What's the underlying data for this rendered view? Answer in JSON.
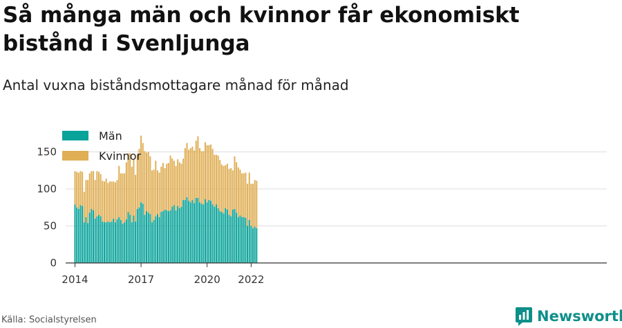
{
  "title": "Så många män och kvinnor får ekonomiskt bistånd i Svenljunga",
  "subtitle": "Antal vuxna biståndsmottagare månad för månad",
  "source": "Källa: Socialstyrelsen",
  "brand": "Newsworthy",
  "colors": {
    "man": "#0aa39a",
    "kvinnor": "#dfae55",
    "grid": "#dddddd",
    "brand": "#0e8f8a"
  },
  "chart_data": {
    "type": "bar",
    "stacked": true,
    "x_start": "2014-01",
    "x_end": "2022-04",
    "x_ticks": [
      "2014",
      "2017",
      "2020",
      "2022"
    ],
    "y_ticks": [
      0,
      50,
      100,
      150
    ],
    "ylim": [
      0,
      180
    ],
    "legend": {
      "position": "top-left"
    },
    "grid": true,
    "series": [
      {
        "name": "Män",
        "values": [
          79,
          75,
          73,
          78,
          77,
          55,
          62,
          54,
          68,
          73,
          71,
          60,
          63,
          65,
          63,
          56,
          55,
          55,
          56,
          55,
          56,
          60,
          55,
          59,
          62,
          58,
          53,
          55,
          59,
          69,
          65,
          55,
          64,
          56,
          73,
          75,
          82,
          80,
          65,
          70,
          68,
          66,
          55,
          58,
          63,
          66,
          62,
          69,
          70,
          72,
          71,
          70,
          71,
          76,
          78,
          71,
          77,
          74,
          76,
          85,
          85,
          89,
          84,
          82,
          85,
          81,
          88,
          88,
          82,
          80,
          79,
          86,
          82,
          85,
          84,
          79,
          76,
          79,
          74,
          70,
          69,
          67,
          74,
          72,
          65,
          63,
          72,
          73,
          68,
          62,
          64,
          62,
          62,
          61,
          50,
          58,
          50,
          47,
          49,
          47
        ]
      },
      {
        "name": "Kvinnor",
        "values": [
          45,
          48,
          49,
          46,
          46,
          41,
          50,
          58,
          53,
          51,
          53,
          52,
          61,
          58,
          57,
          55,
          55,
          59,
          52,
          55,
          54,
          50,
          54,
          53,
          69,
          63,
          68,
          66,
          77,
          79,
          83,
          75,
          76,
          63,
          73,
          79,
          90,
          82,
          86,
          79,
          82,
          78,
          70,
          68,
          75,
          59,
          60,
          61,
          65,
          56,
          63,
          65,
          74,
          65,
          60,
          60,
          63,
          62,
          58,
          56,
          70,
          73,
          69,
          73,
          72,
          71,
          77,
          83,
          73,
          71,
          72,
          77,
          77,
          74,
          76,
          75,
          70,
          67,
          71,
          69,
          64,
          64,
          58,
          62,
          62,
          65,
          53,
          71,
          68,
          67,
          62,
          59,
          59,
          61,
          57,
          64,
          57,
          60,
          63,
          64
        ]
      }
    ]
  }
}
